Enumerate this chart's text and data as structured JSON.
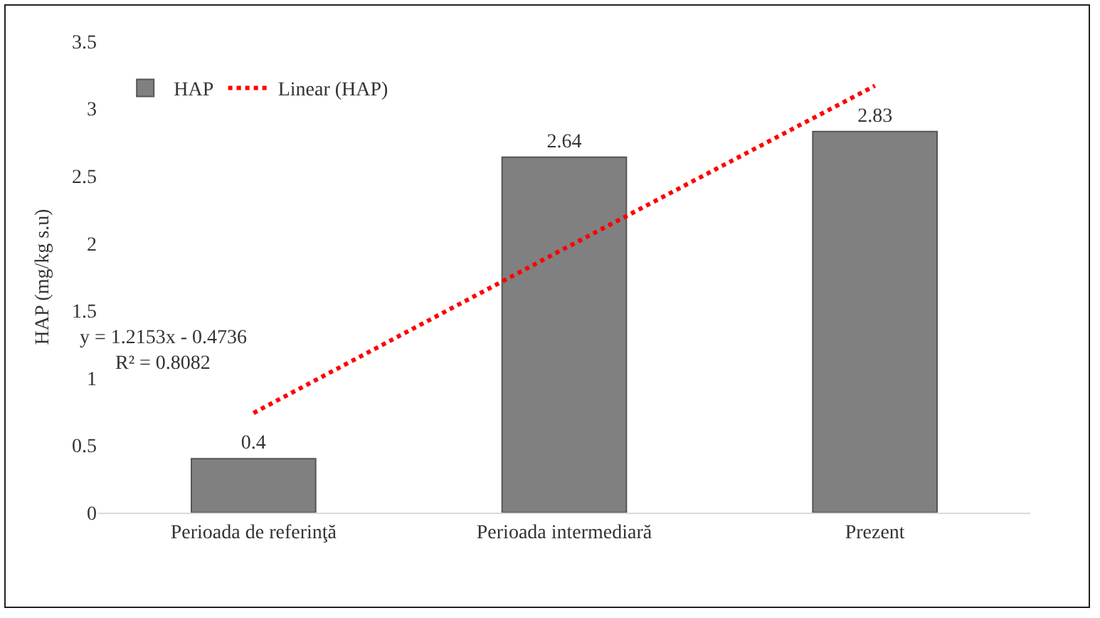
{
  "chart_data": {
    "type": "bar",
    "ylabel": "HAP (mg/kg s.u)",
    "categories": [
      "Perioada de referinţă",
      "Perioada intermediară",
      "Prezent"
    ],
    "series": [
      {
        "name": "HAP",
        "color": "#808080",
        "values": [
          0.4,
          2.64,
          2.83
        ],
        "data_labels": true
      },
      {
        "name": "Linear (HAP)",
        "type": "line",
        "color": "#ff0000",
        "line_style": "dotted",
        "marker": "none",
        "values": [
          0.74,
          1.96,
          3.17
        ]
      }
    ],
    "annotations": [
      "y = 1.2153x - 0.4736",
      "R² = 0.8082"
    ],
    "ylim": [
      0,
      3.5
    ],
    "yticks": [
      0,
      0.5,
      1,
      1.5,
      2,
      2.5,
      3,
      3.5
    ],
    "grid": false,
    "legend": "top left"
  }
}
